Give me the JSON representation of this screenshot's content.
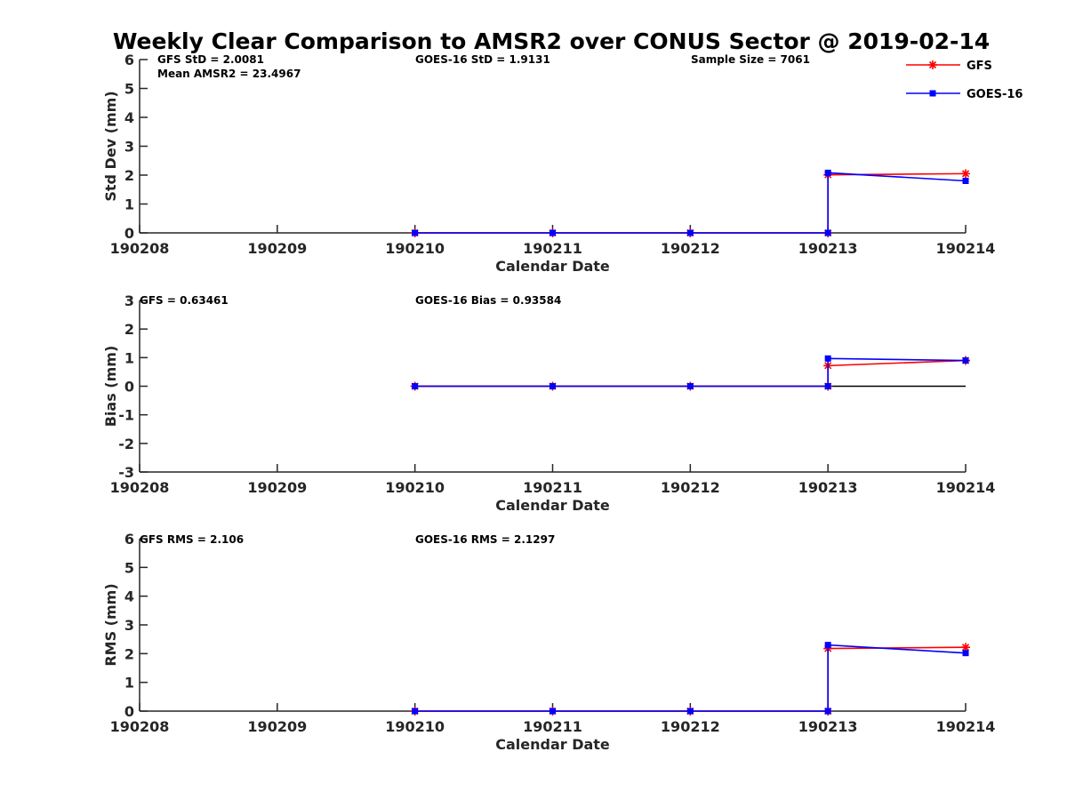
{
  "title": "Weekly Clear Comparison to AMSR2 over CONUS Sector @ 2019-02-14",
  "colors": {
    "gfs": "#ff0000",
    "goes": "#0000ff",
    "zero_line": "#000000",
    "axis": "#262626"
  },
  "legend": {
    "placement": "top-right",
    "entries": [
      {
        "label": "GFS",
        "marker": "star",
        "color": "#ff0000"
      },
      {
        "label": "GOES-16",
        "marker": "square",
        "color": "#0000ff"
      }
    ]
  },
  "chart_data": [
    {
      "type": "line",
      "ylabel": "Std Dev (mm)",
      "xlabel": "Calendar Date",
      "xticks": [
        "190208",
        "190209",
        "190210",
        "190211",
        "190212",
        "190213",
        "190214"
      ],
      "yticks": [
        "0",
        "1",
        "2",
        "3",
        "4",
        "5",
        "6"
      ],
      "xlim": [
        0,
        6
      ],
      "ylim": [
        0,
        6
      ],
      "grid": false,
      "zero_line": false,
      "annotations": [
        "GFS StD = 2.0081",
        "Mean AMSR2 = 23.4967",
        "GOES-16 StD = 1.9131",
        "Sample Size = 7061"
      ],
      "series": [
        {
          "name": "GFS",
          "x": [
            2,
            3,
            4,
            5,
            5,
            6
          ],
          "values": [
            0,
            0,
            0,
            0,
            2.01,
            2.05
          ]
        },
        {
          "name": "GOES-16",
          "x": [
            2,
            3,
            4,
            5,
            5,
            6
          ],
          "values": [
            0,
            0,
            0,
            0,
            2.08,
            1.8
          ]
        }
      ]
    },
    {
      "type": "line",
      "ylabel": "Bias (mm)",
      "xlabel": "Calendar Date",
      "xticks": [
        "190208",
        "190209",
        "190210",
        "190211",
        "190212",
        "190213",
        "190214"
      ],
      "yticks": [
        "-3",
        "-2",
        "-1",
        "0",
        "1",
        "2",
        "3"
      ],
      "xlim": [
        0,
        6
      ],
      "ylim": [
        -3,
        3
      ],
      "grid": false,
      "zero_line": true,
      "annotations": [
        "GFS = 0.63461",
        "GOES-16 Bias  = 0.93584"
      ],
      "series": [
        {
          "name": "GFS",
          "x": [
            2,
            3,
            4,
            5,
            5,
            6
          ],
          "values": [
            0,
            0,
            0,
            0,
            0.72,
            0.9
          ]
        },
        {
          "name": "GOES-16",
          "x": [
            2,
            3,
            4,
            5,
            5,
            6
          ],
          "values": [
            0,
            0,
            0,
            0,
            0.97,
            0.9
          ]
        }
      ]
    },
    {
      "type": "line",
      "ylabel": "RMS (mm)",
      "xlabel": "Calendar Date",
      "xticks": [
        "190208",
        "190209",
        "190210",
        "190211",
        "190212",
        "190213",
        "190214"
      ],
      "yticks": [
        "0",
        "1",
        "2",
        "3",
        "4",
        "5",
        "6"
      ],
      "xlim": [
        0,
        6
      ],
      "ylim": [
        0,
        6
      ],
      "grid": false,
      "zero_line": false,
      "annotations": [
        "GFS RMS = 2.106",
        "GOES-16 RMS = 2.1297"
      ],
      "series": [
        {
          "name": "GFS",
          "x": [
            2,
            3,
            4,
            5,
            5,
            6
          ],
          "values": [
            0,
            0,
            0,
            0,
            2.18,
            2.22
          ]
        },
        {
          "name": "GOES-16",
          "x": [
            2,
            3,
            4,
            5,
            5,
            6
          ],
          "values": [
            0,
            0,
            0,
            0,
            2.3,
            2.02
          ]
        }
      ]
    }
  ]
}
